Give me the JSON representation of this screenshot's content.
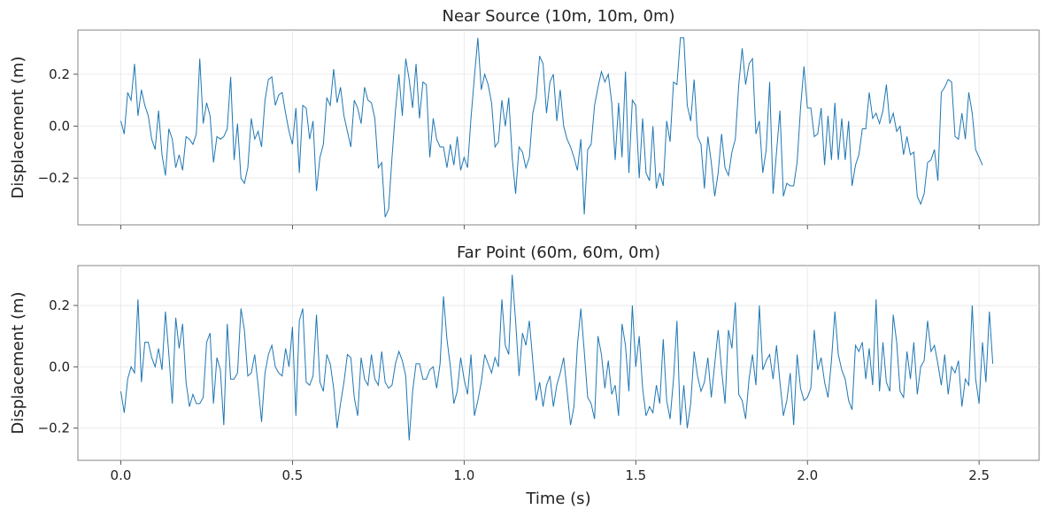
{
  "chart_data": [
    {
      "type": "line",
      "title": "Near Source (10m, 10m, 0m)",
      "xlabel": "",
      "ylabel": "Displacement (m)",
      "xlim": [
        -0.125,
        2.675
      ],
      "ylim": [
        -0.38,
        0.37
      ],
      "xticks": [
        0.0,
        0.5,
        1.0,
        1.5,
        2.0,
        2.5
      ],
      "xtick_labels": [],
      "yticks": [
        -0.2,
        0.0,
        0.2
      ],
      "ytick_labels": [
        "−0.2",
        "0.0",
        "0.2"
      ],
      "grid": true,
      "color": "#1f77b4",
      "series": [
        {
          "x0": 0.0,
          "dx": 0.01,
          "values": [
            0.02,
            -0.03,
            0.13,
            0.1,
            0.24,
            0.04,
            0.14,
            0.08,
            0.04,
            -0.05,
            -0.09,
            0.06,
            -0.11,
            -0.19,
            -0.01,
            -0.05,
            -0.16,
            -0.11,
            -0.17,
            -0.04,
            -0.05,
            -0.07,
            -0.03,
            0.26,
            0.01,
            0.09,
            0.04,
            -0.14,
            -0.04,
            -0.05,
            -0.04,
            -0.01,
            0.19,
            -0.13,
            0.01,
            -0.2,
            -0.22,
            -0.16,
            0.03,
            -0.05,
            -0.02,
            -0.08,
            0.1,
            0.18,
            0.19,
            0.08,
            0.12,
            0.13,
            0.05,
            -0.02,
            -0.07,
            0.07,
            -0.18,
            0.08,
            0.07,
            -0.05,
            0.02,
            -0.25,
            -0.12,
            -0.07,
            0.11,
            0.08,
            0.22,
            0.09,
            0.15,
            0.04,
            -0.02,
            -0.08,
            0.1,
            0.07,
            0.01,
            0.15,
            0.1,
            0.09,
            0.03,
            -0.16,
            -0.14,
            -0.35,
            -0.32,
            -0.12,
            0.06,
            0.2,
            0.04,
            0.26,
            0.18,
            0.07,
            0.24,
            0.03,
            0.17,
            0.16,
            -0.12,
            0.03,
            -0.05,
            -0.08,
            -0.08,
            -0.16,
            -0.07,
            -0.15,
            -0.04,
            -0.17,
            -0.12,
            -0.16,
            0.03,
            0.19,
            0.34,
            0.14,
            0.2,
            0.16,
            0.09,
            -0.08,
            -0.06,
            0.1,
            0.0,
            0.11,
            -0.12,
            -0.26,
            -0.08,
            -0.1,
            -0.16,
            -0.12,
            0.05,
            0.11,
            0.27,
            0.24,
            0.05,
            0.17,
            0.2,
            0.02,
            0.14,
            0.0,
            -0.05,
            -0.08,
            -0.12,
            -0.17,
            -0.05,
            -0.34,
            -0.09,
            -0.07,
            0.08,
            0.15,
            0.21,
            0.17,
            0.2,
            0.09,
            -0.13,
            0.09,
            -0.12,
            0.21,
            -0.18,
            0.1,
            0.08,
            -0.2,
            0.03,
            -0.18,
            -0.21,
            0.0,
            -0.24,
            -0.18,
            -0.23,
            0.02,
            -0.06,
            0.17,
            0.16,
            0.34,
            0.34,
            0.08,
            0.02,
            0.18,
            -0.04,
            -0.07,
            -0.24,
            -0.04,
            -0.14,
            -0.27,
            -0.18,
            -0.03,
            -0.16,
            -0.19,
            -0.1,
            -0.05,
            0.16,
            0.3,
            0.16,
            0.24,
            0.26,
            -0.03,
            0.02,
            -0.18,
            -0.09,
            0.17,
            -0.26,
            -0.1,
            0.06,
            -0.27,
            -0.22,
            -0.23,
            -0.23,
            -0.14,
            0.07,
            0.23,
            0.07,
            0.07,
            -0.04,
            -0.03,
            0.07,
            -0.15,
            0.04,
            -0.13,
            0.09,
            -0.13,
            0.03,
            -0.13,
            0.02,
            -0.23,
            -0.15,
            -0.11,
            -0.01,
            -0.01,
            0.13,
            0.03,
            0.05,
            0.01,
            0.06,
            0.16,
            0.01,
            0.05,
            -0.02,
            0.0,
            -0.11,
            -0.04,
            -0.11,
            -0.1,
            -0.27,
            -0.3,
            -0.26,
            -0.14,
            -0.13,
            -0.09,
            -0.21,
            0.13,
            0.15,
            0.18,
            0.17,
            -0.04,
            -0.05,
            0.05,
            -0.05,
            0.13,
            0.05,
            -0.09,
            -0.12,
            -0.15
          ]
        }
      ]
    },
    {
      "type": "line",
      "title": "Far Point (60m, 60m, 0m)",
      "xlabel": "Time (s)",
      "ylabel": "Displacement (m)",
      "xlim": [
        -0.125,
        2.675
      ],
      "ylim": [
        -0.305,
        0.33
      ],
      "xticks": [
        0.0,
        0.5,
        1.0,
        1.5,
        2.0,
        2.5
      ],
      "xtick_labels": [
        "0.0",
        "0.5",
        "1.0",
        "1.5",
        "2.0",
        "2.5"
      ],
      "yticks": [
        -0.2,
        0.0,
        0.2
      ],
      "ytick_labels": [
        "−0.2",
        "0.0",
        "0.2"
      ],
      "grid": true,
      "color": "#1f77b4",
      "series": [
        {
          "x0": 0.0,
          "dx": 0.01,
          "values": [
            -0.08,
            -0.15,
            -0.04,
            0.0,
            -0.02,
            0.22,
            -0.05,
            0.08,
            0.08,
            0.03,
            0.0,
            0.06,
            -0.01,
            0.18,
            0.04,
            -0.12,
            0.16,
            0.06,
            0.14,
            -0.05,
            -0.13,
            -0.09,
            -0.12,
            -0.12,
            -0.1,
            0.08,
            0.11,
            -0.12,
            0.03,
            -0.01,
            -0.19,
            0.14,
            -0.04,
            -0.04,
            -0.02,
            0.19,
            0.12,
            -0.03,
            -0.02,
            0.04,
            -0.06,
            -0.18,
            -0.02,
            0.04,
            0.07,
            0.0,
            -0.02,
            -0.03,
            0.06,
            0.0,
            0.13,
            -0.16,
            0.15,
            0.19,
            -0.05,
            -0.06,
            -0.03,
            0.17,
            -0.05,
            -0.08,
            0.04,
            0.01,
            -0.07,
            -0.2,
            -0.12,
            -0.05,
            0.04,
            0.03,
            -0.1,
            -0.16,
            0.03,
            -0.04,
            -0.06,
            0.04,
            -0.04,
            -0.06,
            0.05,
            -0.05,
            -0.07,
            -0.06,
            0.01,
            0.05,
            0.02,
            -0.03,
            -0.24,
            -0.08,
            0.01,
            0.01,
            -0.04,
            -0.04,
            -0.01,
            0.0,
            -0.07,
            0.01,
            0.23,
            0.09,
            0.0,
            -0.12,
            -0.08,
            0.03,
            -0.04,
            -0.09,
            0.04,
            -0.16,
            -0.11,
            -0.05,
            0.04,
            0.01,
            -0.02,
            0.03,
            0.0,
            0.22,
            0.07,
            0.04,
            0.3,
            0.15,
            -0.03,
            0.11,
            0.07,
            0.15,
            0.02,
            -0.11,
            -0.05,
            -0.13,
            -0.06,
            -0.03,
            -0.13,
            -0.06,
            -0.02,
            0.03,
            -0.08,
            -0.19,
            -0.13,
            0.07,
            0.19,
            0.05,
            -0.1,
            -0.12,
            -0.17,
            0.1,
            0.04,
            -0.07,
            0.02,
            -0.09,
            -0.06,
            -0.16,
            0.14,
            0.07,
            -0.08,
            0.2,
            0.0,
            0.1,
            -0.07,
            -0.16,
            -0.13,
            -0.15,
            -0.06,
            -0.12,
            0.09,
            -0.11,
            -0.17,
            -0.04,
            0.15,
            -0.19,
            -0.06,
            -0.2,
            -0.12,
            0.05,
            -0.03,
            -0.08,
            -0.05,
            0.03,
            -0.1,
            0.01,
            0.12,
            -0.01,
            -0.12,
            0.12,
            0.06,
            0.21,
            -0.09,
            -0.11,
            -0.17,
            -0.04,
            0.04,
            -0.06,
            0.2,
            -0.01,
            0.02,
            0.04,
            -0.04,
            0.07,
            -0.05,
            -0.16,
            -0.11,
            -0.02,
            -0.19,
            0.04,
            -0.07,
            -0.11,
            -0.1,
            -0.07,
            0.12,
            -0.01,
            0.03,
            -0.05,
            -0.1,
            0.02,
            0.18,
            0.04,
            -0.01,
            -0.04,
            -0.11,
            -0.14,
            0.07,
            0.05,
            0.08,
            -0.04,
            0.06,
            -0.06,
            0.22,
            -0.08,
            0.08,
            -0.05,
            -0.08,
            0.17,
            0.08,
            -0.08,
            -0.1,
            0.05,
            -0.04,
            0.08,
            -0.09,
            0.0,
            0.02,
            0.15,
            0.05,
            0.07,
            0.01,
            -0.06,
            0.04,
            -0.09,
            0.0,
            -0.02,
            0.02,
            -0.13,
            -0.04,
            -0.06,
            0.2,
            -0.04,
            -0.12,
            0.08,
            -0.05,
            0.18,
            0.01
          ]
        }
      ]
    }
  ]
}
